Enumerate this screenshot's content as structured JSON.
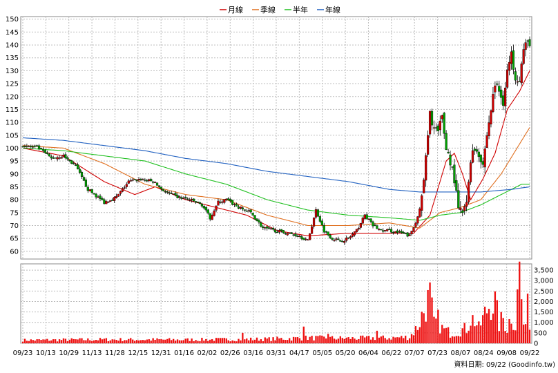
{
  "chart_data": {
    "type": "candlestick",
    "legend": [
      {
        "name": "月線",
        "color": "#d00000"
      },
      {
        "name": "季線",
        "color": "#e07020"
      },
      {
        "name": "半年",
        "color": "#20c020"
      },
      {
        "name": "年線",
        "color": "#2060c0"
      }
    ],
    "price_axis": {
      "ylim": [
        57,
        151
      ],
      "ticks": [
        60,
        65,
        70,
        75,
        80,
        85,
        90,
        95,
        100,
        105,
        110,
        115,
        120,
        125,
        130,
        135,
        140,
        145,
        150
      ]
    },
    "volume_axis": {
      "ylim": [
        0,
        3800
      ],
      "ticks": [
        0,
        500,
        1000,
        1500,
        2000,
        2500,
        3000,
        3500
      ],
      "tick_labels": [
        "0",
        "500",
        "1,000",
        "1,500",
        "2,000",
        "2,500",
        "3,000",
        "3,500"
      ]
    },
    "x_labels": [
      "09/23",
      "10/13",
      "10/29",
      "11/13",
      "11/28",
      "12/15",
      "12/31",
      "01/16",
      "02/02",
      "02/26",
      "03/16",
      "03/31",
      "04/17",
      "05/05",
      "05/20",
      "06/04",
      "06/22",
      "07/07",
      "07/23",
      "08/07",
      "08/24",
      "09/08",
      "09/22"
    ],
    "close_anchors": [
      [
        0,
        101
      ],
      [
        8,
        100
      ],
      [
        14,
        96
      ],
      [
        20,
        97
      ],
      [
        26,
        93
      ],
      [
        32,
        84
      ],
      [
        40,
        79
      ],
      [
        46,
        81
      ],
      [
        52,
        87
      ],
      [
        58,
        88
      ],
      [
        64,
        87
      ],
      [
        70,
        83
      ],
      [
        76,
        81
      ],
      [
        82,
        80
      ],
      [
        88,
        78
      ],
      [
        92,
        73
      ],
      [
        96,
        79
      ],
      [
        100,
        80
      ],
      [
        106,
        77
      ],
      [
        112,
        75
      ],
      [
        118,
        69
      ],
      [
        124,
        68
      ],
      [
        130,
        67
      ],
      [
        136,
        66
      ],
      [
        140,
        64
      ],
      [
        144,
        76
      ],
      [
        148,
        68
      ],
      [
        152,
        65
      ],
      [
        156,
        64
      ],
      [
        160,
        65
      ],
      [
        164,
        68
      ],
      [
        168,
        74
      ],
      [
        172,
        70
      ],
      [
        176,
        68
      ],
      [
        180,
        68
      ],
      [
        186,
        67
      ],
      [
        190,
        66
      ],
      [
        193,
        71
      ],
      [
        196,
        80
      ],
      [
        198,
        96
      ],
      [
        200,
        113
      ],
      [
        202,
        108
      ],
      [
        204,
        106
      ],
      [
        206,
        112
      ],
      [
        208,
        100
      ],
      [
        210,
        95
      ],
      [
        212,
        88
      ],
      [
        214,
        76
      ],
      [
        216,
        75
      ],
      [
        218,
        78
      ],
      [
        220,
        96
      ],
      [
        222,
        100
      ],
      [
        224,
        98
      ],
      [
        226,
        94
      ],
      [
        228,
        105
      ],
      [
        230,
        115
      ],
      [
        232,
        125
      ],
      [
        234,
        122
      ],
      [
        236,
        118
      ],
      [
        238,
        130
      ],
      [
        240,
        136
      ],
      [
        242,
        128
      ],
      [
        244,
        127
      ],
      [
        246,
        138
      ],
      [
        248,
        141
      ],
      [
        249,
        141
      ]
    ],
    "ma_month": [
      [
        0,
        100
      ],
      [
        20,
        97
      ],
      [
        40,
        87
      ],
      [
        55,
        82
      ],
      [
        65,
        85
      ],
      [
        80,
        80
      ],
      [
        95,
        77
      ],
      [
        110,
        74
      ],
      [
        125,
        68
      ],
      [
        140,
        66
      ],
      [
        160,
        67
      ],
      [
        180,
        67
      ],
      [
        192,
        67
      ],
      [
        200,
        74
      ],
      [
        208,
        95
      ],
      [
        212,
        98
      ],
      [
        216,
        90
      ],
      [
        220,
        80
      ],
      [
        226,
        88
      ],
      [
        232,
        98
      ],
      [
        238,
        115
      ],
      [
        244,
        122
      ],
      [
        249,
        130
      ]
    ],
    "ma_season": [
      [
        0,
        101
      ],
      [
        20,
        100
      ],
      [
        40,
        94
      ],
      [
        60,
        86
      ],
      [
        80,
        82
      ],
      [
        100,
        80
      ],
      [
        120,
        74
      ],
      [
        140,
        70
      ],
      [
        160,
        70
      ],
      [
        180,
        71
      ],
      [
        195,
        69
      ],
      [
        205,
        75
      ],
      [
        215,
        77
      ],
      [
        225,
        80
      ],
      [
        235,
        90
      ],
      [
        249,
        108
      ]
    ],
    "ma_half": [
      [
        0,
        100
      ],
      [
        20,
        99
      ],
      [
        40,
        97
      ],
      [
        60,
        95
      ],
      [
        80,
        90
      ],
      [
        100,
        86
      ],
      [
        120,
        80
      ],
      [
        140,
        76
      ],
      [
        160,
        74
      ],
      [
        180,
        73
      ],
      [
        195,
        72
      ],
      [
        205,
        74
      ],
      [
        215,
        75
      ],
      [
        225,
        78
      ],
      [
        235,
        82
      ],
      [
        245,
        86
      ],
      [
        249,
        86
      ]
    ],
    "ma_year": [
      [
        0,
        104
      ],
      [
        20,
        103
      ],
      [
        40,
        101
      ],
      [
        60,
        99
      ],
      [
        80,
        96
      ],
      [
        100,
        94
      ],
      [
        120,
        91
      ],
      [
        140,
        89
      ],
      [
        160,
        87
      ],
      [
        180,
        84
      ],
      [
        195,
        83
      ],
      [
        210,
        83
      ],
      [
        225,
        83
      ],
      [
        240,
        84
      ],
      [
        249,
        85
      ]
    ],
    "volume_anchors": [
      [
        0,
        150
      ],
      [
        40,
        180
      ],
      [
        80,
        170
      ],
      [
        120,
        200
      ],
      [
        140,
        260
      ],
      [
        160,
        240
      ],
      [
        180,
        260
      ],
      [
        190,
        300
      ],
      [
        194,
        800
      ],
      [
        198,
        1800
      ],
      [
        200,
        2200
      ],
      [
        202,
        900
      ],
      [
        204,
        1100
      ],
      [
        206,
        700
      ],
      [
        210,
        500
      ],
      [
        214,
        600
      ],
      [
        218,
        700
      ],
      [
        220,
        1200
      ],
      [
        222,
        1100
      ],
      [
        224,
        700
      ],
      [
        228,
        1600
      ],
      [
        230,
        2000
      ],
      [
        232,
        1900
      ],
      [
        234,
        900
      ],
      [
        236,
        1200
      ],
      [
        238,
        700
      ],
      [
        240,
        1400
      ],
      [
        242,
        800
      ],
      [
        244,
        3700
      ],
      [
        246,
        600
      ],
      [
        248,
        2600
      ],
      [
        249,
        800
      ]
    ],
    "volume_spikes": [
      [
        108,
        500
      ],
      [
        138,
        800
      ],
      [
        150,
        450
      ],
      [
        174,
        600
      ]
    ],
    "footer_text": "資料日期: 09/22",
    "source_text": "(Goodinfo.tw)"
  }
}
